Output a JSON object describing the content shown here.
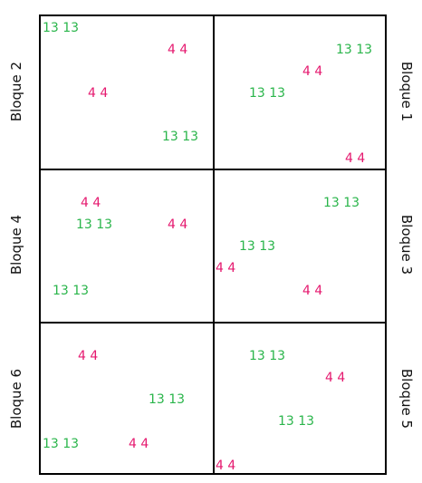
{
  "colors": {
    "green": "#2ab54b",
    "magenta": "#e5196f"
  },
  "blocks": [
    {
      "label": "Bloque 2"
    },
    {
      "label": "Bloque 1"
    },
    {
      "label": "Bloque 4"
    },
    {
      "label": "Bloque 3"
    },
    {
      "label": "Bloque 6"
    },
    {
      "label": "Bloque 5"
    }
  ],
  "marks": {
    "green": "13 13",
    "magenta": "4 4"
  }
}
